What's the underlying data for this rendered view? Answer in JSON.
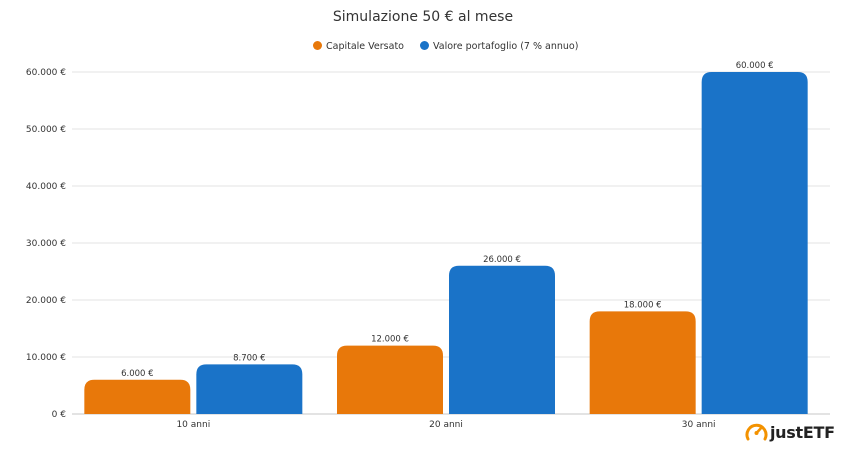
{
  "colors": {
    "capitale": "#E8780A",
    "valore": "#1A73C8",
    "logo_accent": "#F39200"
  },
  "brand": {
    "logo_text": "justETF"
  },
  "chart_data": {
    "type": "bar",
    "title": "Simulazione 50 € al mese",
    "categories": [
      "10 anni",
      "20 anni",
      "30 anni"
    ],
    "series": [
      {
        "name": "Capitale Versato",
        "values": [
          6000,
          12000,
          18000
        ],
        "labels": [
          "6.000 €",
          "12.000 €",
          "18.000 €"
        ]
      },
      {
        "name": "Valore portafoglio (7 % annuo)",
        "values": [
          8700,
          26000,
          60000
        ],
        "labels": [
          "8.700 €",
          "26.000 €",
          "60.000 €"
        ]
      }
    ],
    "ylim": [
      0,
      60000
    ],
    "yticks": [
      0,
      10000,
      20000,
      30000,
      40000,
      50000,
      60000
    ],
    "ytick_labels": [
      "0 €",
      "10.000 €",
      "20.000 €",
      "30.000 €",
      "40.000 €",
      "50.000 €",
      "60.000 €"
    ],
    "grid": true,
    "legend": "top"
  }
}
